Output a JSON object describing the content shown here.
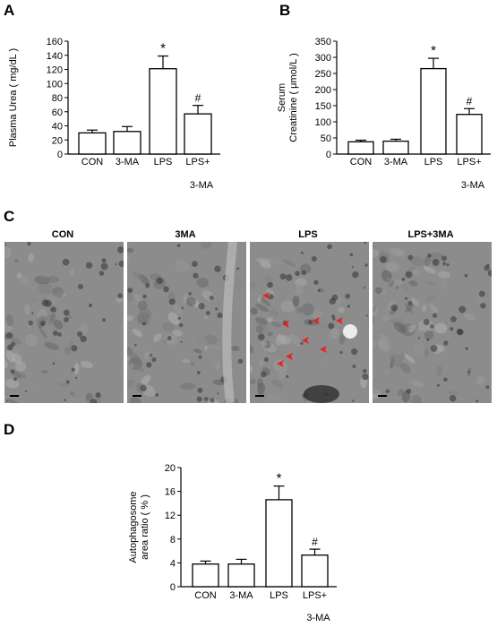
{
  "panels": {
    "a": {
      "letter": "A"
    },
    "b": {
      "letter": "B"
    },
    "c": {
      "letter": "C"
    },
    "d": {
      "letter": "D"
    }
  },
  "micrographs": [
    {
      "label": "CON"
    },
    {
      "label": "3MA"
    },
    {
      "label": "LPS"
    },
    {
      "label": "LPS+3MA"
    }
  ],
  "colors": {
    "bar_fill": "#ffffff",
    "bar_stroke": "#000000",
    "arrow": "#e8201e",
    "em_base": "#8c8c8c"
  },
  "chart_data": [
    {
      "type": "bar",
      "panel": "A",
      "ylabel": "Plasma Urea ( mg/dL )",
      "ylim": [
        0,
        160
      ],
      "yticks": [
        0,
        20,
        40,
        60,
        80,
        100,
        120,
        140,
        160
      ],
      "categories": [
        "CON",
        "3-MA",
        "LPS",
        "LPS+\n3-MA"
      ],
      "values": [
        30,
        32,
        121,
        57
      ],
      "errors": [
        4,
        7,
        18,
        12
      ],
      "annotations": [
        "",
        "",
        "*",
        "#"
      ],
      "grid": false
    },
    {
      "type": "bar",
      "panel": "B",
      "ylabel": "Serum Creatinine ( μmol/L )",
      "ylim": [
        0,
        350
      ],
      "yticks": [
        0,
        50,
        100,
        150,
        200,
        250,
        300,
        350
      ],
      "categories": [
        "CON",
        "3-MA",
        "LPS",
        "LPS+\n3-MA"
      ],
      "values": [
        38,
        40,
        265,
        123
      ],
      "errors": [
        5,
        6,
        32,
        18
      ],
      "annotations": [
        "",
        "",
        "*",
        "#"
      ],
      "grid": false
    },
    {
      "type": "bar",
      "panel": "D",
      "ylabel": "Autophagosome area ratio ( % )",
      "ylim": [
        0,
        20
      ],
      "yticks": [
        0,
        4,
        8,
        12,
        16,
        20
      ],
      "categories": [
        "CON",
        "3-MA",
        "LPS",
        "LPS+\n3-MA"
      ],
      "values": [
        3.8,
        3.8,
        14.6,
        5.3
      ],
      "errors": [
        0.5,
        0.8,
        2.3,
        1.0
      ],
      "annotations": [
        "",
        "",
        "*",
        "#"
      ],
      "grid": false
    }
  ]
}
